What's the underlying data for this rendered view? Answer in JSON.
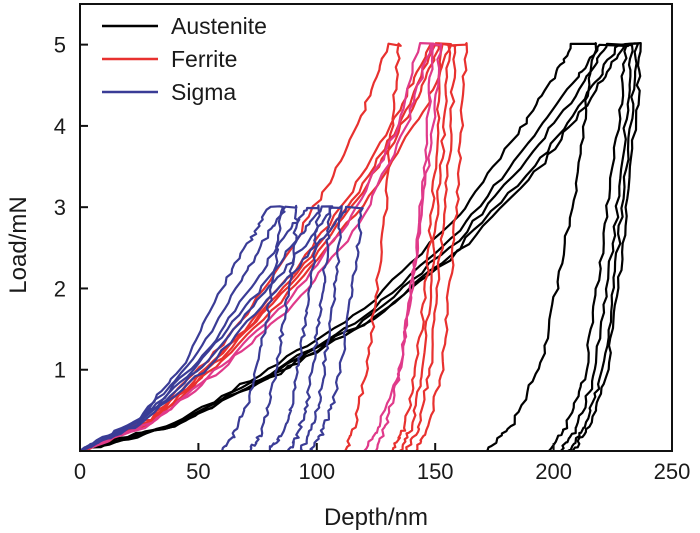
{
  "chart_data": {
    "type": "line",
    "title": "",
    "xlabel": "Depth/nm",
    "ylabel": "Load/mN",
    "xlim": [
      0,
      250
    ],
    "ylim": [
      0,
      5.5
    ],
    "xticks": [
      0,
      50,
      100,
      150,
      200,
      250
    ],
    "yticks": [
      1,
      2,
      3,
      4,
      5
    ],
    "legend_position": "top-left",
    "legend": [
      {
        "name": "Austenite",
        "color": "#000000"
      },
      {
        "name": "Ferrite",
        "color": "#e8312f"
      },
      {
        "name": "Sigma",
        "color": "#3a3c96"
      }
    ],
    "curves": [
      {
        "phase": "Austenite",
        "color": "#000000",
        "loading": [
          [
            0,
            0
          ],
          [
            40,
            0.35
          ],
          [
            80,
            1.0
          ],
          [
            120,
            1.75
          ],
          [
            160,
            2.9
          ],
          [
            185,
            3.9
          ],
          [
            200,
            4.6
          ],
          [
            208,
            5.0
          ]
        ],
        "hold_end": 218,
        "unloading": [
          [
            218,
            5.0
          ],
          [
            214,
            4.3
          ],
          [
            209,
            3.2
          ],
          [
            202,
            2.1
          ],
          [
            195,
            1.1
          ],
          [
            183,
            0.35
          ],
          [
            172,
            0
          ]
        ]
      },
      {
        "phase": "Austenite",
        "color": "#000000",
        "loading": [
          [
            0,
            0
          ],
          [
            40,
            0.33
          ],
          [
            80,
            0.95
          ],
          [
            120,
            1.65
          ],
          [
            160,
            2.7
          ],
          [
            190,
            3.8
          ],
          [
            210,
            4.6
          ],
          [
            220,
            5.0
          ]
        ],
        "hold_end": 231,
        "unloading": [
          [
            231,
            5.0
          ],
          [
            228,
            4.2
          ],
          [
            223,
            3.0
          ],
          [
            218,
            1.9
          ],
          [
            213,
            0.9
          ],
          [
            205,
            0.3
          ],
          [
            198,
            0
          ]
        ]
      },
      {
        "phase": "Austenite",
        "color": "#000000",
        "loading": [
          [
            0,
            0
          ],
          [
            40,
            0.32
          ],
          [
            80,
            0.93
          ],
          [
            120,
            1.6
          ],
          [
            160,
            2.6
          ],
          [
            192,
            3.7
          ],
          [
            213,
            4.55
          ],
          [
            223,
            5.0
          ]
        ],
        "hold_end": 233,
        "unloading": [
          [
            233,
            5.0
          ],
          [
            231,
            4.2
          ],
          [
            227,
            3.0
          ],
          [
            222,
            1.9
          ],
          [
            217,
            0.9
          ],
          [
            210,
            0.3
          ],
          [
            203,
            0
          ]
        ]
      },
      {
        "phase": "Austenite",
        "color": "#000000",
        "loading": [
          [
            0,
            0
          ],
          [
            40,
            0.31
          ],
          [
            80,
            0.9
          ],
          [
            120,
            1.55
          ],
          [
            160,
            2.5
          ],
          [
            195,
            3.6
          ],
          [
            217,
            4.5
          ],
          [
            227,
            5.0
          ]
        ],
        "hold_end": 235,
        "unloading": [
          [
            235,
            5.0
          ],
          [
            233,
            4.2
          ],
          [
            229,
            3.0
          ],
          [
            225,
            1.9
          ],
          [
            220,
            0.9
          ],
          [
            213,
            0.3
          ],
          [
            206,
            0
          ]
        ]
      },
      {
        "phase": "Austenite",
        "color": "#000000",
        "loading": [
          [
            0,
            0
          ],
          [
            40,
            0.31
          ],
          [
            80,
            0.9
          ],
          [
            120,
            1.55
          ],
          [
            160,
            2.45
          ],
          [
            196,
            3.55
          ],
          [
            218,
            4.45
          ],
          [
            230,
            5.0
          ]
        ],
        "hold_end": 237,
        "unloading": [
          [
            237,
            5.0
          ],
          [
            235,
            4.2
          ],
          [
            231,
            3.0
          ],
          [
            227,
            1.9
          ],
          [
            222,
            0.9
          ],
          [
            215,
            0.3
          ],
          [
            208,
            0
          ]
        ]
      },
      {
        "phase": "Ferrite",
        "color": "#e8312f",
        "loading": [
          [
            0,
            0
          ],
          [
            30,
            0.4
          ],
          [
            60,
            1.3
          ],
          [
            85,
            2.3
          ],
          [
            105,
            3.3
          ],
          [
            120,
            4.2
          ],
          [
            130,
            5.0
          ]
        ],
        "hold_end": 135,
        "unloading": [
          [
            135,
            5.0
          ],
          [
            132,
            4.1
          ],
          [
            129,
            3.0
          ],
          [
            125,
            1.9
          ],
          [
            121,
            1.0
          ],
          [
            116,
            0.3
          ],
          [
            112,
            0
          ]
        ]
      },
      {
        "phase": "Ferrite",
        "color": "#e8312f",
        "loading": [
          [
            0,
            0
          ],
          [
            30,
            0.38
          ],
          [
            60,
            1.2
          ],
          [
            90,
            2.2
          ],
          [
            115,
            3.2
          ],
          [
            135,
            4.2
          ],
          [
            148,
            5.0
          ]
        ],
        "hold_end": 153,
        "unloading": [
          [
            153,
            5.0
          ],
          [
            151,
            4.0
          ],
          [
            149,
            3.0
          ],
          [
            146,
            2.0
          ],
          [
            142,
            1.0
          ],
          [
            137,
            0.3
          ],
          [
            132,
            0
          ]
        ]
      },
      {
        "phase": "Ferrite",
        "color": "#e8312f",
        "loading": [
          [
            0,
            0
          ],
          [
            30,
            0.36
          ],
          [
            60,
            1.15
          ],
          [
            95,
            2.25
          ],
          [
            122,
            3.3
          ],
          [
            142,
            4.3
          ],
          [
            152,
            5.0
          ]
        ],
        "hold_end": 158,
        "unloading": [
          [
            158,
            5.0
          ],
          [
            157,
            4.0
          ],
          [
            154,
            3.0
          ],
          [
            151,
            2.0
          ],
          [
            148,
            1.0
          ],
          [
            143,
            0.3
          ],
          [
            138,
            0
          ]
        ]
      },
      {
        "phase": "Ferrite",
        "color": "#e8312f",
        "loading": [
          [
            0,
            0
          ],
          [
            30,
            0.35
          ],
          [
            60,
            1.1
          ],
          [
            95,
            2.15
          ],
          [
            125,
            3.25
          ],
          [
            147,
            4.3
          ],
          [
            157,
            5.0
          ]
        ],
        "hold_end": 163,
        "unloading": [
          [
            163,
            5.0
          ],
          [
            161,
            4.0
          ],
          [
            159,
            3.0
          ],
          [
            156,
            2.0
          ],
          [
            153,
            1.0
          ],
          [
            147,
            0.3
          ],
          [
            142,
            0
          ]
        ]
      },
      {
        "phase": "Ferrite",
        "color": "#e8312f",
        "loading": [
          [
            0,
            0
          ],
          [
            30,
            0.37
          ],
          [
            60,
            1.18
          ],
          [
            92,
            2.2
          ],
          [
            118,
            3.2
          ],
          [
            138,
            4.2
          ],
          [
            150,
            5.0
          ]
        ],
        "hold_end": 156,
        "unloading": [
          [
            156,
            5.0
          ],
          [
            154,
            4.0
          ],
          [
            151,
            3.0
          ],
          [
            148,
            2.0
          ],
          [
            145,
            1.0
          ],
          [
            140,
            0.3
          ],
          [
            135,
            0
          ]
        ]
      },
      {
        "phase": "Ferrite",
        "color": "#e03a8a",
        "loading": [
          [
            0,
            0
          ],
          [
            30,
            0.34
          ],
          [
            60,
            1.05
          ],
          [
            90,
            1.9
          ],
          [
            115,
            2.9
          ],
          [
            133,
            3.9
          ],
          [
            143,
            5.0
          ]
        ],
        "hold_end": 149,
        "unloading": [
          [
            149,
            5.0
          ],
          [
            147,
            4.0
          ],
          [
            144,
            3.0
          ],
          [
            140,
            2.0
          ],
          [
            136,
            1.1
          ],
          [
            130,
            0.4
          ],
          [
            125,
            0
          ]
        ]
      },
      {
        "phase": "Ferrite",
        "color": "#e03a8a",
        "loading": [
          [
            0,
            0
          ],
          [
            30,
            0.33
          ],
          [
            60,
            1.0
          ],
          [
            90,
            1.8
          ],
          [
            118,
            2.8
          ],
          [
            138,
            4.0
          ],
          [
            148,
            5.0
          ]
        ],
        "hold_end": 152,
        "unloading": [
          [
            152,
            5.0
          ],
          [
            149,
            4.0
          ],
          [
            145,
            3.0
          ],
          [
            140,
            2.0
          ],
          [
            135,
            1.0
          ],
          [
            126,
            0.3
          ],
          [
            120,
            0
          ]
        ]
      },
      {
        "phase": "Sigma",
        "color": "#3a3c96",
        "loading": [
          [
            0,
            0
          ],
          [
            25,
            0.4
          ],
          [
            45,
            1.1
          ],
          [
            60,
            2.0
          ],
          [
            72,
            2.6
          ],
          [
            80,
            3.0
          ]
        ],
        "hold_end": 85,
        "unloading": [
          [
            85,
            3.0
          ],
          [
            83,
            2.4
          ],
          [
            80,
            1.8
          ],
          [
            76,
            1.2
          ],
          [
            71,
            0.6
          ],
          [
            65,
            0.2
          ],
          [
            60,
            0
          ]
        ]
      },
      {
        "phase": "Sigma",
        "color": "#3a3c96",
        "loading": [
          [
            0,
            0
          ],
          [
            25,
            0.38
          ],
          [
            50,
            1.2
          ],
          [
            68,
            2.1
          ],
          [
            80,
            2.7
          ],
          [
            87,
            3.0
          ]
        ],
        "hold_end": 92,
        "unloading": [
          [
            92,
            3.0
          ],
          [
            90,
            2.4
          ],
          [
            87,
            1.8
          ],
          [
            84,
            1.2
          ],
          [
            80,
            0.6
          ],
          [
            76,
            0.2
          ],
          [
            72,
            0
          ]
        ]
      },
      {
        "phase": "Sigma",
        "color": "#3a3c96",
        "loading": [
          [
            0,
            0
          ],
          [
            25,
            0.36
          ],
          [
            50,
            1.1
          ],
          [
            72,
            2.0
          ],
          [
            88,
            2.7
          ],
          [
            96,
            3.0
          ]
        ],
        "hold_end": 101,
        "unloading": [
          [
            101,
            3.0
          ],
          [
            99,
            2.4
          ],
          [
            96,
            1.8
          ],
          [
            93,
            1.2
          ],
          [
            90,
            0.6
          ],
          [
            85,
            0.2
          ],
          [
            80,
            0
          ]
        ]
      },
      {
        "phase": "Sigma",
        "color": "#3a3c96",
        "loading": [
          [
            0,
            0
          ],
          [
            25,
            0.35
          ],
          [
            50,
            1.05
          ],
          [
            75,
            1.95
          ],
          [
            93,
            2.65
          ],
          [
            102,
            3.0
          ]
        ],
        "hold_end": 106,
        "unloading": [
          [
            106,
            3.0
          ],
          [
            104,
            2.4
          ],
          [
            102,
            1.8
          ],
          [
            99,
            1.2
          ],
          [
            96,
            0.6
          ],
          [
            92,
            0.2
          ],
          [
            88,
            0
          ]
        ]
      },
      {
        "phase": "Sigma",
        "color": "#3a3c96",
        "loading": [
          [
            0,
            0
          ],
          [
            25,
            0.34
          ],
          [
            52,
            1.05
          ],
          [
            78,
            1.95
          ],
          [
            97,
            2.6
          ],
          [
            107,
            3.0
          ]
        ],
        "hold_end": 110,
        "unloading": [
          [
            110,
            3.0
          ],
          [
            109,
            2.4
          ],
          [
            107,
            1.8
          ],
          [
            104,
            1.2
          ],
          [
            101,
            0.6
          ],
          [
            97,
            0.2
          ],
          [
            93,
            0
          ]
        ]
      },
      {
        "phase": "Sigma",
        "color": "#3a3c96",
        "loading": [
          [
            0,
            0
          ],
          [
            25,
            0.33
          ],
          [
            55,
            1.05
          ],
          [
            82,
            1.95
          ],
          [
            102,
            2.6
          ],
          [
            113,
            3.0
          ]
        ],
        "hold_end": 119,
        "unloading": [
          [
            119,
            3.0
          ],
          [
            117,
            2.4
          ],
          [
            114,
            1.8
          ],
          [
            111,
            1.2
          ],
          [
            107,
            0.6
          ],
          [
            102,
            0.2
          ],
          [
            97,
            0
          ]
        ]
      }
    ]
  }
}
